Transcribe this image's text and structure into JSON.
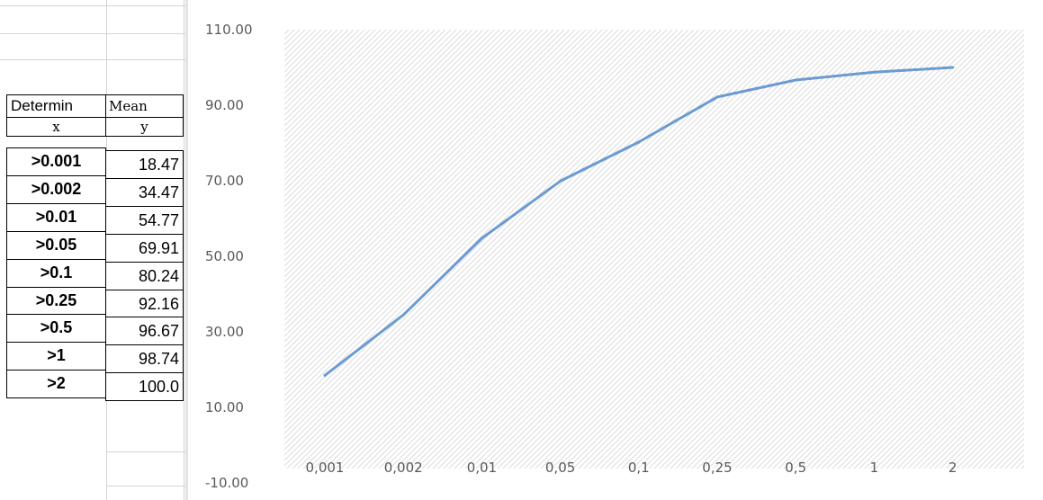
{
  "table": {
    "header_x": "Determin",
    "header_y": "Mean",
    "sub_x": "x",
    "sub_y": "y",
    "rows": [
      {
        "x": ">0.001",
        "y": "18.47"
      },
      {
        "x": ">0.002",
        "y": "34.47"
      },
      {
        "x": ">0.01",
        "y": "54.77"
      },
      {
        "x": ">0.05",
        "y": "69.91"
      },
      {
        "x": ">0.1",
        "y": "80.24"
      },
      {
        "x": ">0.25",
        "y": "92.16"
      },
      {
        "x": ">0.5",
        "y": "96.67"
      },
      {
        "x": ">1",
        "y": "98.74"
      },
      {
        "x": ">2",
        "y": "100.0"
      }
    ]
  },
  "chart_data": {
    "type": "line",
    "categories": [
      "0,001",
      "0,002",
      "0,01",
      "0,05",
      "0,1",
      "0,25",
      "0,5",
      "1",
      "2"
    ],
    "series": [
      {
        "values": [
          18.47,
          34.47,
          54.77,
          69.91,
          80.24,
          92.16,
          96.67,
          98.74,
          100.0
        ]
      }
    ],
    "y_ticks": [
      "110.00",
      "90.00",
      "70.00",
      "50.00",
      "30.00",
      "10.00",
      "-10.00"
    ],
    "ylim": [
      -10,
      110
    ],
    "title": "",
    "xlabel": "",
    "ylabel": "",
    "grid": false,
    "plot_background": "diagonal-hatch",
    "line_color": "#6b9bd1",
    "hatch_color": "#dcdcdc"
  }
}
